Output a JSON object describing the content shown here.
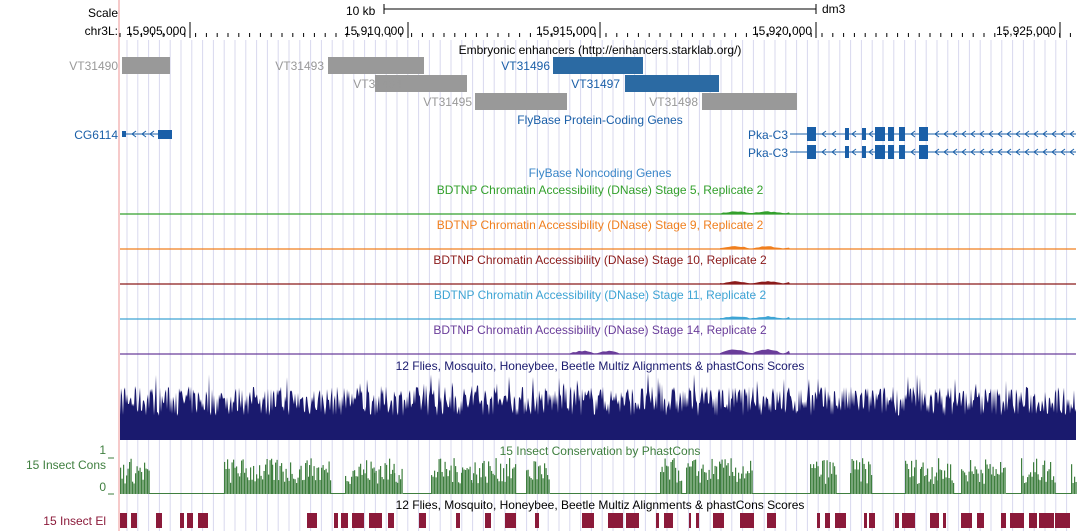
{
  "ruler": {
    "scale_label": "Scale",
    "scale_bar": "10 kb",
    "assembly": "dm3",
    "chrom_label": "chr3L:",
    "positions": [
      "15,905,000",
      "15,910,000",
      "15,915,000",
      "15,920,000",
      "15,925,000"
    ]
  },
  "tracks": {
    "enhancers": {
      "title": "Embryonic enhancers (http://enhancers.starklab.org/)",
      "items": [
        "VT31490",
        "VT31493",
        "VT31494",
        "VT31495",
        "VT31496",
        "VT31497",
        "VT31498"
      ],
      "highlighted": [
        "VT31496",
        "VT31497"
      ]
    },
    "protein_genes": {
      "title": "FlyBase Protein-Coding Genes",
      "genes": [
        "CG6114",
        "Pka-C3",
        "Pka-C3"
      ]
    },
    "noncoding": {
      "title": "FlyBase Noncoding Genes"
    },
    "dnase": [
      {
        "title": "BDTNP Chromatin Accessibility (DNase) Stage 5, Replicate 2",
        "color": "#33a02c"
      },
      {
        "title": "BDTNP Chromatin Accessibility (DNase) Stage 9, Replicate 2",
        "color": "#f07f1e"
      },
      {
        "title": "BDTNP Chromatin Accessibility (DNase) Stage 10, Replicate 2",
        "color": "#8b1a1a"
      },
      {
        "title": "BDTNP Chromatin Accessibility (DNase) Stage 11, Replicate 2",
        "color": "#3ea4d4"
      },
      {
        "title": "BDTNP Chromatin Accessibility (DNase) Stage 14, Replicate 2",
        "color": "#6a3d9a"
      }
    ],
    "multiz": {
      "title": "12 Flies, Mosquito, Honeybee, Beetle Multiz Alignments & phastCons Scores",
      "color": "#1a1a6e"
    },
    "phastcons": {
      "title": "15 Insect Conservation by PhastCons",
      "side_label": "15 Insect Cons",
      "axis_max": "1",
      "axis_min": "0",
      "color": "#3f7f3f"
    },
    "elements": {
      "title": "12 Flies, Mosquito, Honeybee, Beetle Multiz Alignments & phastCons Scores",
      "side_label": "15 Insect El",
      "color": "#8b1a3a"
    }
  },
  "colors": {
    "gene_blue": "#1a5fa8",
    "enhancer_gray": "#999999",
    "enhancer_blue": "#2b6aa3",
    "grid": "#d8d8ee",
    "highlight_line": "#f4b8b8"
  }
}
